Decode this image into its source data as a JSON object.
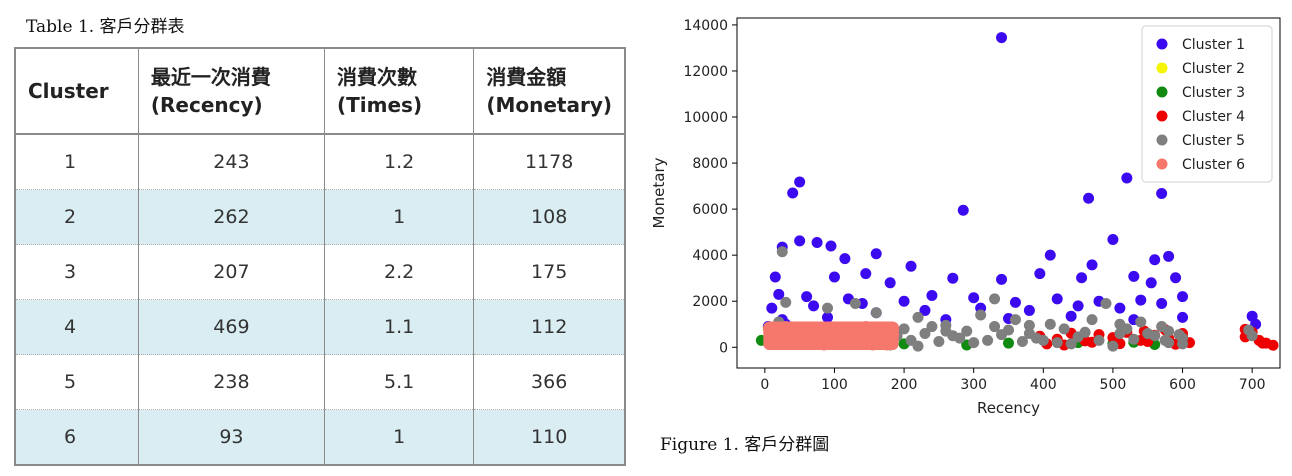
{
  "table": {
    "caption": "Table 1. 客戶分群表",
    "headers": [
      {
        "line1": "Cluster",
        "line2": ""
      },
      {
        "line1": "最近一次消費",
        "line2": "(Recency)"
      },
      {
        "line1": "消費次數",
        "line2": "(Times)"
      },
      {
        "line1": "消費金額",
        "line2": "(Monetary)"
      }
    ],
    "rows": [
      [
        "1",
        "243",
        "1.2",
        "1178"
      ],
      [
        "2",
        "262",
        "1",
        "108"
      ],
      [
        "3",
        "207",
        "2.2",
        "175"
      ],
      [
        "4",
        "469",
        "1.1",
        "112"
      ],
      [
        "5",
        "238",
        "5.1",
        "366"
      ],
      [
        "6",
        "93",
        "1",
        "110"
      ]
    ],
    "row_shade_color": "#d9edf3"
  },
  "figure": {
    "caption": "Figure 1. 客戶分群圖"
  },
  "chart_data": {
    "type": "scatter",
    "title": "",
    "xlabel": "Recency",
    "ylabel": "Monetary",
    "xlim": [
      -40,
      740
    ],
    "ylim": [
      -900,
      14300
    ],
    "xticks": [
      0,
      100,
      200,
      300,
      400,
      500,
      600,
      700
    ],
    "yticks": [
      0,
      2000,
      4000,
      6000,
      8000,
      10000,
      12000,
      14000
    ],
    "grid": false,
    "legend_position": "top-right",
    "series": [
      {
        "name": "Cluster 1",
        "color": "#3b0af0",
        "points": [
          [
            340,
            13450
          ],
          [
            50,
            7180
          ],
          [
            40,
            6700
          ],
          [
            285,
            5950
          ],
          [
            465,
            6470
          ],
          [
            520,
            7350
          ],
          [
            570,
            6680
          ],
          [
            500,
            4680
          ],
          [
            25,
            4350
          ],
          [
            50,
            4620
          ],
          [
            75,
            4550
          ],
          [
            95,
            4400
          ],
          [
            115,
            3850
          ],
          [
            160,
            4060
          ],
          [
            210,
            3520
          ],
          [
            410,
            4000
          ],
          [
            470,
            3580
          ],
          [
            560,
            3800
          ],
          [
            580,
            3950
          ],
          [
            15,
            3050
          ],
          [
            100,
            3050
          ],
          [
            180,
            2800
          ],
          [
            270,
            3000
          ],
          [
            340,
            2950
          ],
          [
            395,
            3200
          ],
          [
            455,
            3020
          ],
          [
            530,
            3080
          ],
          [
            590,
            3020
          ],
          [
            600,
            2200
          ],
          [
            20,
            2300
          ],
          [
            60,
            2200
          ],
          [
            120,
            2100
          ],
          [
            200,
            2000
          ],
          [
            240,
            2250
          ],
          [
            300,
            2150
          ],
          [
            360,
            1950
          ],
          [
            420,
            2100
          ],
          [
            480,
            2000
          ],
          [
            540,
            2050
          ],
          [
            10,
            1700
          ],
          [
            70,
            1800
          ],
          [
            140,
            1900
          ],
          [
            230,
            1600
          ],
          [
            310,
            1700
          ],
          [
            380,
            1600
          ],
          [
            450,
            1800
          ],
          [
            510,
            1700
          ],
          [
            570,
            1900
          ],
          [
            25,
            1200
          ],
          [
            90,
            1300
          ],
          [
            160,
            1500
          ],
          [
            260,
            1200
          ],
          [
            350,
            1250
          ],
          [
            440,
            1350
          ],
          [
            530,
            1200
          ],
          [
            600,
            1300
          ],
          [
            700,
            1350
          ],
          [
            705,
            1000
          ],
          [
            5,
            900
          ],
          [
            30,
            1000
          ],
          [
            555,
            2800
          ],
          [
            145,
            3200
          ]
        ]
      },
      {
        "name": "Cluster 2",
        "color": "#f5f500",
        "points": []
      },
      {
        "name": "Cluster 3",
        "color": "#108a10",
        "points": [
          [
            -5,
            300
          ],
          [
            100,
            120
          ],
          [
            200,
            150
          ],
          [
            290,
            100
          ],
          [
            350,
            180
          ],
          [
            450,
            200
          ],
          [
            500,
            150
          ],
          [
            560,
            120
          ],
          [
            530,
            220
          ]
        ]
      },
      {
        "name": "Cluster 4",
        "color": "#ee0000",
        "points": [
          [
            395,
            480
          ],
          [
            420,
            350
          ],
          [
            440,
            610
          ],
          [
            460,
            280
          ],
          [
            480,
            550
          ],
          [
            500,
            420
          ],
          [
            520,
            650
          ],
          [
            540,
            300
          ],
          [
            560,
            520
          ],
          [
            580,
            380
          ],
          [
            600,
            600
          ],
          [
            610,
            200
          ],
          [
            600,
            450
          ],
          [
            690,
            450
          ],
          [
            700,
            650
          ],
          [
            710,
            300
          ],
          [
            715,
            180
          ],
          [
            720,
            180
          ],
          [
            730,
            90
          ],
          [
            545,
            700
          ],
          [
            575,
            760
          ],
          [
            690,
            780
          ],
          [
            405,
            150
          ],
          [
            430,
            100
          ],
          [
            470,
            220
          ],
          [
            510,
            160
          ],
          [
            550,
            250
          ],
          [
            590,
            130
          ]
        ]
      },
      {
        "name": "Cluster 5",
        "color": "#7f7f7f",
        "points": [
          [
            25,
            4150
          ],
          [
            30,
            1950
          ],
          [
            20,
            1100
          ],
          [
            50,
            800
          ],
          [
            90,
            1700
          ],
          [
            130,
            1900
          ],
          [
            160,
            1500
          ],
          [
            220,
            1300
          ],
          [
            260,
            950
          ],
          [
            310,
            1400
          ],
          [
            330,
            2100
          ],
          [
            360,
            1200
          ],
          [
            380,
            600
          ],
          [
            410,
            1000
          ],
          [
            430,
            800
          ],
          [
            470,
            1200
          ],
          [
            490,
            1900
          ],
          [
            510,
            1000
          ],
          [
            540,
            1100
          ],
          [
            580,
            700
          ],
          [
            600,
            400
          ],
          [
            190,
            500
          ],
          [
            210,
            300
          ],
          [
            230,
            600
          ],
          [
            250,
            250
          ],
          [
            270,
            500
          ],
          [
            290,
            700
          ],
          [
            320,
            300
          ],
          [
            340,
            550
          ],
          [
            370,
            250
          ],
          [
            390,
            400
          ],
          [
            420,
            200
          ],
          [
            450,
            450
          ],
          [
            480,
            300
          ],
          [
            510,
            600
          ],
          [
            530,
            350
          ],
          [
            560,
            500
          ],
          [
            580,
            200
          ],
          [
            600,
            150
          ],
          [
            200,
            800
          ],
          [
            240,
            900
          ],
          [
            280,
            400
          ],
          [
            300,
            200
          ],
          [
            350,
            750
          ],
          [
            400,
            300
          ],
          [
            460,
            650
          ],
          [
            520,
            800
          ],
          [
            570,
            900
          ],
          [
            595,
            550
          ],
          [
            700,
            500
          ],
          [
            695,
            750
          ],
          [
            180,
            100
          ],
          [
            220,
            50
          ],
          [
            260,
            700
          ],
          [
            330,
            900
          ],
          [
            380,
            950
          ],
          [
            440,
            150
          ],
          [
            500,
            50
          ],
          [
            550,
            600
          ],
          [
            575,
            300
          ]
        ]
      },
      {
        "name": "Cluster 6",
        "color": "#f6776b",
        "points": [
          [
            5,
            820
          ],
          [
            10,
            700
          ],
          [
            15,
            500
          ],
          [
            20,
            300
          ],
          [
            25,
            150
          ],
          [
            30,
            900
          ],
          [
            40,
            600
          ],
          [
            50,
            400
          ],
          [
            60,
            800
          ],
          [
            70,
            250
          ],
          [
            80,
            650
          ],
          [
            90,
            450
          ],
          [
            100,
            850
          ],
          [
            110,
            300
          ],
          [
            120,
            700
          ],
          [
            130,
            550
          ],
          [
            140,
            200
          ],
          [
            150,
            750
          ],
          [
            160,
            400
          ],
          [
            170,
            650
          ],
          [
            180,
            300
          ],
          [
            185,
            850
          ],
          [
            175,
            100
          ],
          [
            165,
            800
          ],
          [
            145,
            900
          ],
          [
            125,
            150
          ],
          [
            105,
            500
          ],
          [
            85,
            100
          ],
          [
            65,
            550
          ],
          [
            45,
            200
          ],
          [
            35,
            450
          ],
          [
            55,
            700
          ],
          [
            75,
            850
          ],
          [
            95,
            200
          ],
          [
            115,
            650
          ],
          [
            135,
            400
          ],
          [
            155,
            100
          ],
          [
            185,
            550
          ],
          [
            10,
            120
          ],
          [
            182,
            200
          ]
        ]
      }
    ]
  }
}
